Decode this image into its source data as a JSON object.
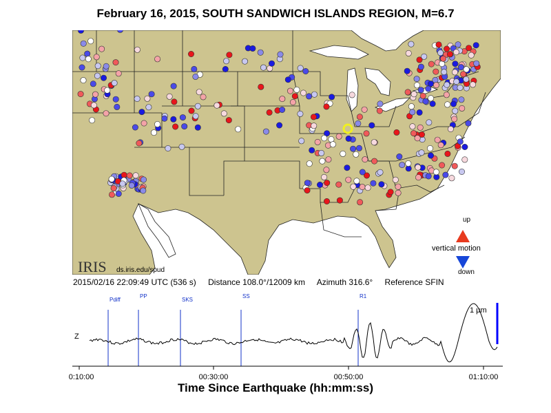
{
  "title": "February 16, 2015, SOUTH SANDWICH ISLANDS REGION, M=6.7",
  "info": {
    "time": "2015/02/16 22:09:49 UTC (536 s)",
    "distance": "Distance 108.0°/12009 km",
    "azimuth": "Azimuth 316.6°",
    "reference": "Reference SFIN"
  },
  "logo": {
    "text": "IRIS",
    "url": "ds.iris.edu/spud"
  },
  "legend": {
    "up": "up",
    "vertical": "vertical motion",
    "down": "down",
    "up_color": "#e83a1e",
    "down_color": "#1646d8"
  },
  "colors": {
    "land": "#cdc48f",
    "water": "#ffffff",
    "border": "#222222",
    "station_red": "#e8161b",
    "station_blue": "#1a1ae0",
    "reference": "#f0f020",
    "phase_line": "#1030c8",
    "scale_bar": "#0000ff"
  },
  "seismogram": {
    "channel": "Z",
    "x_ticks": [
      "00:10:00",
      "00:30:00",
      "00:50:00",
      "01:10:00"
    ],
    "x_label": "Time Since Earthquake (hh:mm:ss)",
    "phases": [
      "Pdiff",
      "PP",
      "SKS",
      "SS",
      "R1"
    ],
    "scale": "1 μm"
  }
}
